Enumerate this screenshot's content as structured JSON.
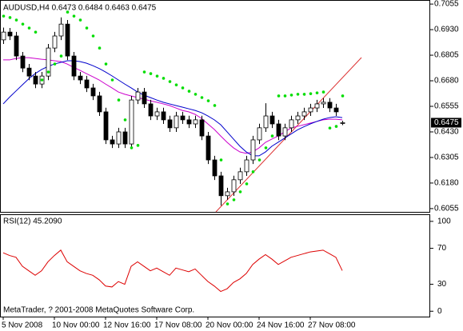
{
  "chart_data": {
    "type": "candlestick",
    "title": "AUDUSD,H4  0.6473 0.6484 0.6463 0.6475",
    "categories": [
      "5 Nov 2008",
      null,
      null,
      null,
      null,
      null,
      null,
      null,
      "10 Nov 00:00",
      null,
      null,
      null,
      null,
      null,
      null,
      null,
      "12 Nov 16:00",
      null,
      null,
      null,
      null,
      null,
      null,
      null,
      "17 Nov 08:00",
      null,
      null,
      null,
      null,
      null,
      null,
      null,
      "20 Nov 00:00",
      null,
      null,
      null,
      null,
      null,
      null,
      null,
      "24 Nov 16:00",
      null,
      null,
      null,
      null,
      null,
      null,
      null,
      "27 Nov 08:00",
      null,
      null,
      null,
      null,
      null
    ],
    "open": [
      0.688,
      0.6918,
      0.6899,
      0.6801,
      0.6742,
      0.6703,
      0.6664,
      0.6703,
      0.684,
      0.6899,
      0.6957,
      0.6801,
      0.6703,
      0.6684,
      0.6645,
      0.6606,
      0.6528,
      0.6391,
      0.6371,
      0.643,
      0.6371,
      0.6586,
      0.6625,
      0.6567,
      0.6508,
      0.6528,
      0.6489,
      0.645,
      0.6508,
      0.6489,
      0.6469,
      0.6489,
      0.641,
      0.6293,
      0.6215,
      0.6118,
      0.6137,
      0.6196,
      0.6235,
      0.6293,
      0.6391,
      0.645,
      0.6508,
      0.6469,
      0.641,
      0.645,
      0.6489,
      0.6508,
      0.6528,
      0.6547,
      0.6567,
      0.6575,
      0.6547,
      0.6473
    ],
    "high": [
      0.694,
      0.6938,
      0.6919,
      0.6821,
      0.6762,
      0.6723,
      0.6723,
      0.686,
      0.6919,
      0.699,
      0.6977,
      0.6821,
      0.6723,
      0.6704,
      0.6665,
      0.6626,
      0.6548,
      0.6411,
      0.645,
      0.645,
      0.6606,
      0.6645,
      0.6645,
      0.6587,
      0.6548,
      0.6548,
      0.6509,
      0.6528,
      0.6528,
      0.6509,
      0.6509,
      0.6509,
      0.643,
      0.6313,
      0.6235,
      0.6157,
      0.6216,
      0.6255,
      0.6313,
      0.6411,
      0.647,
      0.657,
      0.6528,
      0.6489,
      0.647,
      0.6509,
      0.6528,
      0.6548,
      0.6567,
      0.6587,
      0.6595,
      0.6595,
      0.6567,
      0.6484
    ],
    "low": [
      0.686,
      0.6879,
      0.6781,
      0.6722,
      0.6683,
      0.6644,
      0.6644,
      0.6683,
      0.682,
      0.6879,
      0.6781,
      0.6683,
      0.6664,
      0.6625,
      0.6586,
      0.6508,
      0.6371,
      0.6351,
      0.6351,
      0.6351,
      0.6351,
      0.6566,
      0.6547,
      0.6488,
      0.6488,
      0.6469,
      0.643,
      0.643,
      0.6469,
      0.6449,
      0.6449,
      0.639,
      0.6273,
      0.6195,
      0.607,
      0.6098,
      0.6117,
      0.6176,
      0.6215,
      0.6273,
      0.6371,
      0.643,
      0.6449,
      0.639,
      0.639,
      0.643,
      0.6469,
      0.6488,
      0.6508,
      0.6527,
      0.6547,
      0.6527,
      0.6508,
      0.6463
    ],
    "close": [
      0.6918,
      0.6899,
      0.6801,
      0.6742,
      0.6703,
      0.6664,
      0.6703,
      0.684,
      0.6899,
      0.6957,
      0.6801,
      0.6703,
      0.6684,
      0.6645,
      0.6606,
      0.6528,
      0.6391,
      0.6371,
      0.643,
      0.6371,
      0.6586,
      0.6625,
      0.6567,
      0.6508,
      0.6528,
      0.6489,
      0.645,
      0.6508,
      0.6489,
      0.6469,
      0.6489,
      0.641,
      0.6293,
      0.6215,
      0.6118,
      0.6137,
      0.6196,
      0.6235,
      0.6293,
      0.6391,
      0.645,
      0.6508,
      0.6469,
      0.641,
      0.645,
      0.6489,
      0.6508,
      0.6528,
      0.6547,
      0.6567,
      0.6575,
      0.6547,
      0.6528,
      0.6475
    ],
    "lines": [
      {
        "color": "#cc00cc",
        "values": [
          0.6782,
          0.6782,
          0.6789,
          0.6793,
          0.6793,
          0.6789,
          0.6785,
          0.6782,
          0.6778,
          0.6774,
          0.6762,
          0.6746,
          0.6731,
          0.6715,
          0.67,
          0.6684,
          0.6664,
          0.6645,
          0.6625,
          0.6614,
          0.6606,
          0.6598,
          0.659,
          0.6582,
          0.6575,
          0.6567,
          0.6559,
          0.6547,
          0.6535,
          0.6528,
          0.6516,
          0.6496,
          0.6469,
          0.6442,
          0.641,
          0.6379,
          0.6352,
          0.6332,
          0.6325,
          0.6332,
          0.6352,
          0.6379,
          0.6395,
          0.641,
          0.643,
          0.6449,
          0.6457,
          0.6465,
          0.6473,
          0.6481,
          0.6489,
          0.6492,
          0.6492,
          0.6489
        ]
      },
      {
        "color": "#0000cc",
        "values": [
          0.6567,
          0.66,
          0.663,
          0.666,
          0.669,
          0.6715,
          0.6735,
          0.675,
          0.6762,
          0.677,
          0.6778,
          0.6778,
          0.6774,
          0.6766,
          0.6754,
          0.674,
          0.6723,
          0.6704,
          0.6684,
          0.6664,
          0.6645,
          0.6625,
          0.661,
          0.6598,
          0.6586,
          0.6575,
          0.6567,
          0.6559,
          0.6551,
          0.6543,
          0.6535,
          0.6524,
          0.6508,
          0.6489,
          0.6465,
          0.643,
          0.6395,
          0.636,
          0.6332,
          0.6313,
          0.6313,
          0.6332,
          0.636,
          0.638,
          0.64,
          0.642,
          0.644,
          0.6455,
          0.6469,
          0.6481,
          0.6492,
          0.65,
          0.6504,
          0.65
        ]
      }
    ],
    "sar": {
      "color": "#00dd00",
      "values": [
        0.6996,
        0.6989,
        0.6977,
        0.6957,
        0.6938,
        0.6918,
        0.6684,
        0.6723,
        0.6762,
        0.6801,
        0.7016,
        0.6996,
        0.6977,
        0.6938,
        0.6899,
        0.684,
        0.6762,
        0.6684,
        0.6586,
        0.6489,
        0.6352,
        0.6364,
        0.6723,
        0.6715,
        0.6703,
        0.6692,
        0.6676,
        0.666,
        0.6645,
        0.6629,
        0.6614,
        0.6598,
        0.6582,
        0.6559,
        0.6293,
        0.6078,
        0.6098,
        0.6137,
        0.6176,
        0.6235,
        0.6293,
        0.6352,
        0.641,
        0.6606,
        0.6606,
        0.661,
        0.6614,
        0.6614,
        0.6617,
        0.6621,
        0.6625,
        0.6449,
        0.6457,
        0.6606
      ]
    },
    "ylim": [
      0.6039,
      0.7071
    ],
    "yticks": [
      0.7055,
      {
        "value": 0.693,
        "label": "0.6930"
      },
      0.6805,
      {
        "value": 0.668,
        "label": "0.6680"
      },
      0.6555,
      {
        "value": 0.643,
        "label": "0.6430"
      },
      0.6305,
      {
        "value": 0.618,
        "label": "0.6180"
      },
      0.6055
    ],
    "bid": 0.6475,
    "indicator": {
      "title": "RSI(12) 45.2090",
      "color": "#dd0000",
      "values": [
        65,
        62,
        60,
        50,
        45,
        40,
        45,
        55,
        62,
        68,
        55,
        50,
        45,
        42,
        40,
        35,
        28,
        27,
        33,
        30,
        50,
        55,
        50,
        45,
        48,
        44,
        40,
        48,
        46,
        44,
        47,
        40,
        33,
        28,
        22,
        25,
        32,
        36,
        42,
        52,
        58,
        63,
        58,
        52,
        56,
        60,
        62,
        64,
        66,
        67,
        68,
        64,
        60,
        45.209
      ],
      "ylim": [
        -6,
        107
      ],
      "yticks": [
        100,
        70,
        30,
        0
      ]
    },
    "footer": "MetaTrader, ? 2001-2008 MetaQuotes Software Corp."
  }
}
